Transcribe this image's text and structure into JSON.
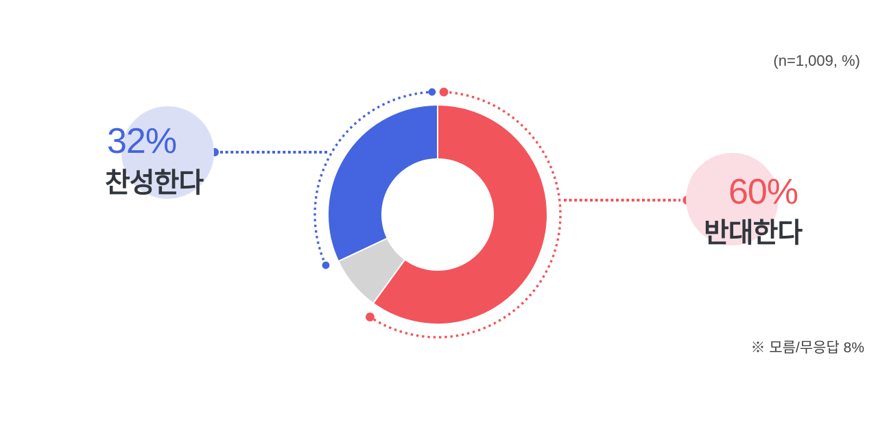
{
  "meta": {
    "sample_note": "(n=1,009, %)",
    "footnote": "※ 모름/무응답 8%"
  },
  "chart_data": {
    "type": "pie",
    "subtype": "donut",
    "title": "",
    "categories": [
      "반대한다",
      "모름/무응답",
      "찬성한다"
    ],
    "values": [
      60,
      8,
      32
    ],
    "keys": [
      "oppose",
      "unknown",
      "agree"
    ],
    "colors": [
      "#f2545b",
      "#d4d4d4",
      "#4465df"
    ],
    "accent_arcs": [
      true,
      false,
      true
    ],
    "start_angle_deg": 0,
    "clockwise": true,
    "legend_position": "callouts",
    "note": "(n=1,009, %)",
    "footnote": "※ 모름/무응답 8%"
  },
  "callouts": {
    "agree": {
      "percent": "32%",
      "label": "찬성한다",
      "color": "#4465df",
      "halo_color": "#dbdff6"
    },
    "oppose": {
      "percent": "60%",
      "label": "반대한다",
      "color": "#f2545b",
      "halo_color": "#fadee3"
    }
  }
}
